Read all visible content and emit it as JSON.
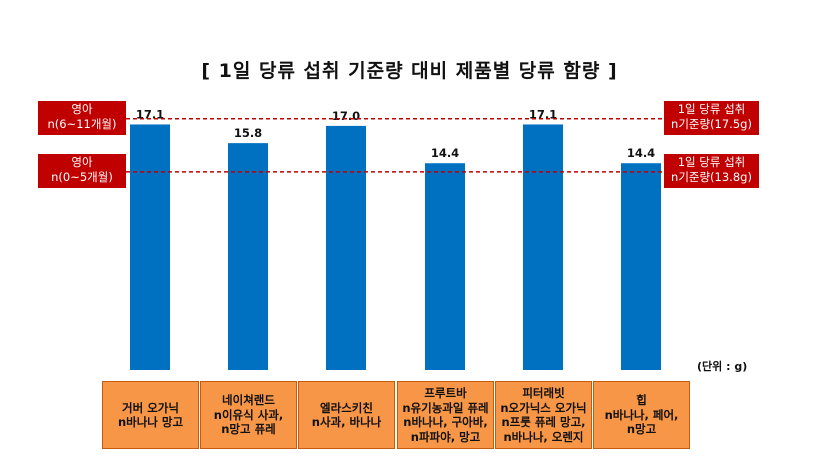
{
  "chart_data": {
    "type": "bar",
    "title": "[ 1일 당류 섭취 기준량 대비 제품별 당류 함량 ]",
    "unit": "(단위 : g)",
    "categories": [
      "거버 오가닉\nn바나나 망고",
      "네이쳐랜드\nn이유식 사과,\nn망고 퓨레",
      "엘라스키친\nn사과, 바나나",
      "프루트바\nn유기농과일 퓨레\nn바나나, 구아바,\nn파파야, 망고",
      "피터래빗\nn오가닉스 오가닉\nn프룻 퓨레 망고,\nn바나나, 오렌지",
      "힙\nn바나나, 페어,\nn망고"
    ],
    "values": [
      17.1,
      15.8,
      17.0,
      14.4,
      17.1,
      14.4
    ],
    "value_labels": [
      "17.1",
      "15.8",
      "17.0",
      "14.4",
      "17.1",
      "14.4"
    ],
    "bar_color": "#0070c0",
    "reference_lines": [
      {
        "value": 17.5,
        "left_label": "영아\nn(6~11개월)",
        "right_label": "1일 당류 섭취\nn기준량(17.5g)",
        "color": "#c00000"
      },
      {
        "value": 13.8,
        "left_label": "영아\nn(0~5개월)",
        "right_label": "1일 당류 섭취\nn기준량(13.8g)",
        "color": "#c00000"
      }
    ],
    "ylim": [
      0,
      19.5
    ],
    "grid": false
  }
}
